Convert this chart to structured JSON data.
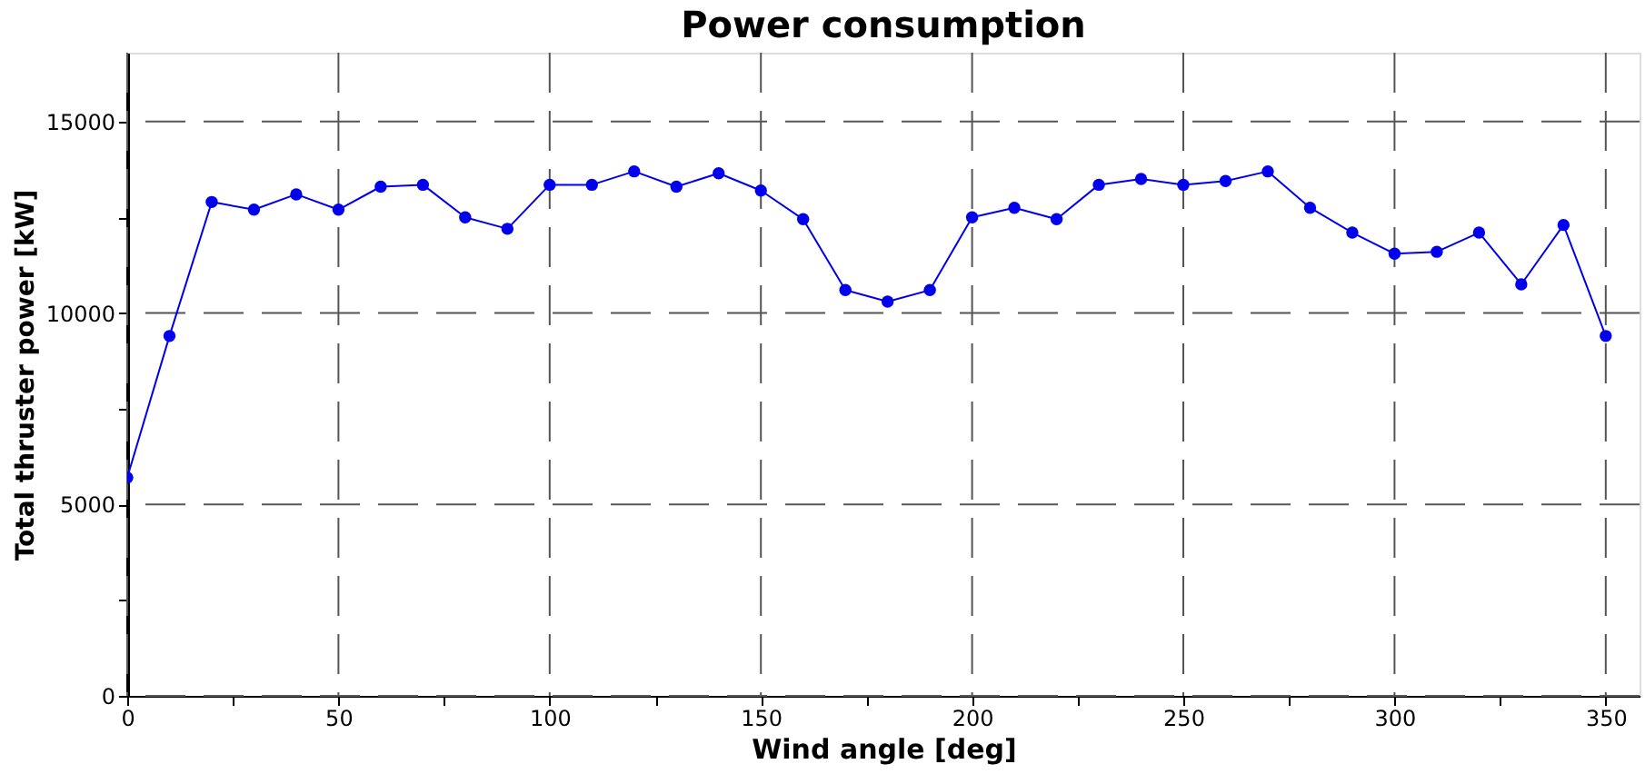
{
  "chart_data": {
    "type": "line",
    "title": "Power consumption",
    "xlabel": "Wind angle [deg]",
    "ylabel": "Total thruster power [kW]",
    "x": [
      0,
      10,
      20,
      30,
      40,
      50,
      60,
      70,
      80,
      90,
      100,
      110,
      120,
      130,
      140,
      150,
      160,
      170,
      180,
      190,
      200,
      210,
      220,
      230,
      240,
      250,
      260,
      270,
      280,
      290,
      300,
      310,
      320,
      330,
      340,
      350
    ],
    "series": [
      {
        "color": "#0000ee",
        "values": [
          5700,
          9400,
          12900,
          12700,
          13100,
          12700,
          13300,
          13350,
          12500,
          12200,
          13350,
          13350,
          13700,
          13300,
          13650,
          13200,
          12450,
          10600,
          10300,
          10600,
          12500,
          12750,
          12450,
          13350,
          13500,
          13350,
          13450,
          13700,
          12750,
          12100,
          11550,
          11600,
          12100,
          10750,
          12300,
          9400
        ]
      }
    ],
    "xlim": [
      0,
      358
    ],
    "ylim": [
      0,
      16800
    ],
    "xticks": [
      0,
      {
        "value": 25,
        "label": null
      },
      50,
      {
        "value": 75,
        "label": null
      },
      100,
      {
        "value": 125,
        "label": null
      },
      150,
      {
        "value": 175,
        "label": null
      },
      200,
      {
        "value": 225,
        "label": null
      },
      250,
      {
        "value": 275,
        "label": null
      },
      300,
      {
        "value": 325,
        "label": null
      },
      350
    ],
    "yticks": [
      0,
      {
        "value": 2500,
        "label": null
      },
      5000,
      {
        "value": 7500,
        "label": null
      },
      10000,
      {
        "value": 12500,
        "label": null
      },
      15000
    ],
    "grid": true,
    "marker": "circle",
    "line_style": "solid"
  }
}
